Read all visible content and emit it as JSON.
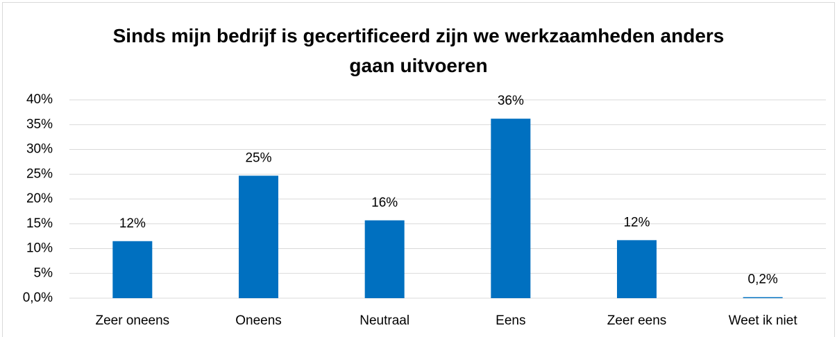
{
  "chart_data": {
    "type": "bar",
    "title": "Sinds mijn bedrijf is gecertificeerd zijn we werkzaamheden anders gaan uitvoeren",
    "categories": [
      "Zeer oneens",
      "Oneens",
      "Neutraal",
      "Eens",
      "Zeer eens",
      "Weet ik niet"
    ],
    "values": [
      11.5,
      24.7,
      15.7,
      36.2,
      11.7,
      0.2
    ],
    "value_labels": [
      "12%",
      "25%",
      "16%",
      "36%",
      "12%",
      "0,2%"
    ],
    "color": "#0070c0",
    "ylim": [
      0,
      40
    ],
    "yticks": [
      {
        "value": 0,
        "label": "0,0%"
      },
      {
        "value": 5,
        "label": "5%"
      },
      {
        "value": 10,
        "label": "10%"
      },
      {
        "value": 15,
        "label": "15%"
      },
      {
        "value": 20,
        "label": "20%"
      },
      {
        "value": 25,
        "label": "25%"
      },
      {
        "value": 30,
        "label": "30%"
      },
      {
        "value": 35,
        "label": "35%"
      },
      {
        "value": 40,
        "label": "40%"
      }
    ],
    "grid": true
  }
}
